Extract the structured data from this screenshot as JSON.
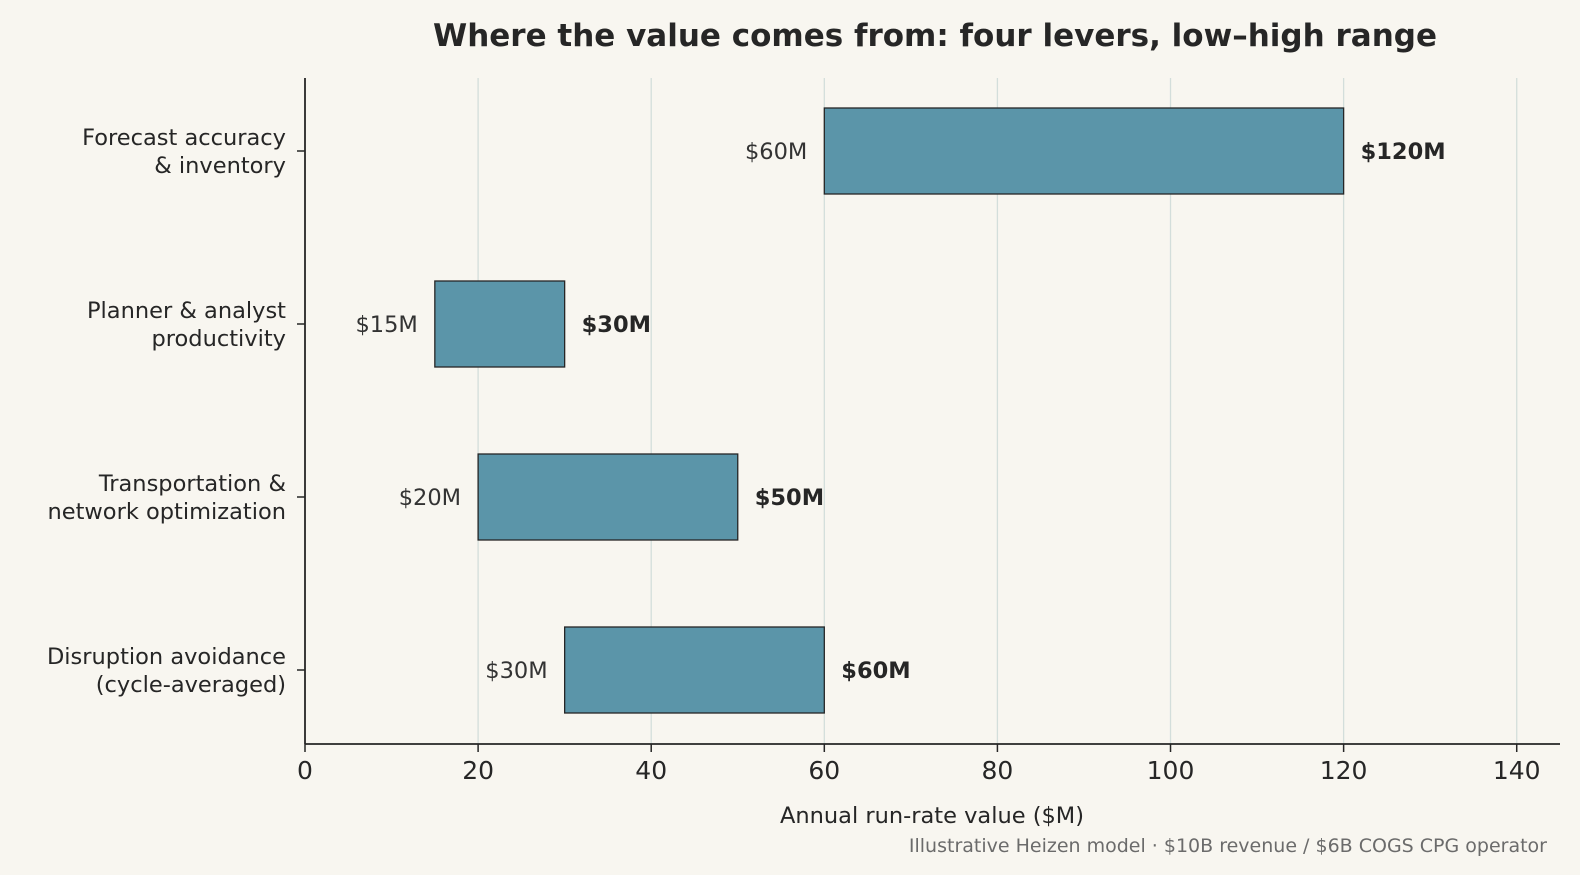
{
  "chart_data": {
    "type": "bar",
    "orientation": "horizontal",
    "style": "floating-range",
    "title": "Where the value comes from: four levers, low–high range",
    "xlabel": "Annual run-rate value ($M)",
    "ylabel": "",
    "xlim": [
      0,
      145
    ],
    "xticks": [
      0,
      20,
      40,
      60,
      80,
      100,
      120,
      140
    ],
    "grid": "vertical",
    "categories": [
      [
        "Forecast accuracy",
        "& inventory"
      ],
      [
        "Planner & analyst",
        "productivity"
      ],
      [
        "Transportation &",
        "network optimization"
      ],
      [
        "Disruption avoidance",
        "(cycle-averaged)"
      ]
    ],
    "low": [
      60,
      15,
      20,
      30
    ],
    "high": [
      120,
      30,
      50,
      60
    ],
    "low_labels": [
      "$60M",
      "$15M",
      "$20M",
      "$30M"
    ],
    "high_labels": [
      "$120M",
      "$30M",
      "$50M",
      "$60M"
    ],
    "footnote": "Illustrative Heizen model · $10B revenue / $6B COGS CPG operator",
    "colors": {
      "bar": "#5b95a9",
      "bar_edge": "#262626",
      "grid": "#d3dedb",
      "axis": "#262626",
      "background": "#f8f6f0"
    }
  }
}
